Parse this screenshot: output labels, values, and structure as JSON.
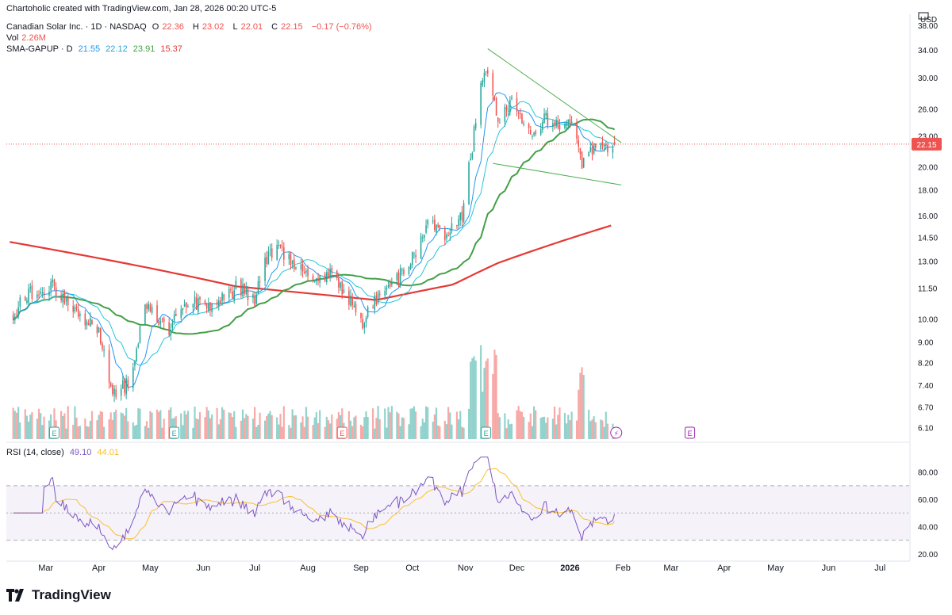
{
  "header": {
    "credit": "Chartoholic created with TradingView.com, Jan 28, 2026 00:20 UTC-5",
    "symbol": "Canadian Solar Inc. · 1D · NASDAQ",
    "o_label": "O",
    "o": "22.36",
    "h_label": "H",
    "h": "23.02",
    "l_label": "L",
    "l": "22.01",
    "c_label": "C",
    "c": "22.15",
    "change": "−0.17 (−0.76%)",
    "vol_label": "Vol",
    "vol": "2.26M",
    "sma_label": "SMA-GAPUP · D",
    "sma_values": [
      "21.55",
      "22.12",
      "23.91",
      "15.37"
    ],
    "rsi_label": "RSI (14, close)",
    "rsi_values": [
      "49.10",
      "44.01"
    ]
  },
  "brand": {
    "name": "TradingView"
  },
  "colors": {
    "up": "#26a69a",
    "down": "#ef5350",
    "sma_fast": "#2196f3",
    "sma_mid": "#26c6da",
    "sma_50": "#43a047",
    "sma_200": "#e53935",
    "rsi": "#7e57c2",
    "rsi_ma": "#fbc02d",
    "trendline": "#4caf50",
    "last_price_bg": "#ef5350"
  },
  "chart_data": [
    {
      "type": "candlestick",
      "title": "Canadian Solar Inc. · 1D · NASDAQ",
      "scale": "log",
      "y_ticks": [
        38.0,
        34.0,
        30.0,
        26.0,
        23.0,
        20.0,
        18.0,
        16.0,
        14.5,
        13.0,
        11.5,
        10.0,
        9.0,
        8.2,
        7.4,
        6.7,
        6.1
      ],
      "y_tick_labels": [
        "38.00",
        "34.00",
        "30.00",
        "26.00",
        "23.00",
        "20.00",
        "18.00",
        "16.00",
        "14.50",
        "13.00",
        "11.50",
        "10.00",
        "9.00",
        "8.20",
        "7.40",
        "6.70",
        "6.10"
      ],
      "y_unit": "USD",
      "ylim": [
        5.75,
        40.0
      ],
      "last_price": 22.15,
      "last_price_label": "22.15",
      "x_labels": [
        "Mar",
        "Apr",
        "May",
        "Jun",
        "Jul",
        "Aug",
        "Sep",
        "Oct",
        "Nov",
        "Dec",
        "2026",
        "Feb",
        "Mar",
        "Apr",
        "May",
        "Jun",
        "Jul"
      ],
      "x_label_dates": [
        "2025-03-01",
        "2025-04-01",
        "2025-05-01",
        "2025-06-01",
        "2025-07-01",
        "2025-08-01",
        "2025-09-01",
        "2025-10-01",
        "2025-11-01",
        "2025-12-01",
        "2026-01-01",
        "2026-02-01",
        "2026-03-01",
        "2026-04-01",
        "2026-05-01",
        "2026-06-01",
        "2026-07-01"
      ],
      "price_anchors": [
        [
          "2025-02-10",
          10.3
        ],
        [
          "2025-02-20",
          11.2
        ],
        [
          "2025-03-05",
          11.6
        ],
        [
          "2025-03-20",
          10.2
        ],
        [
          "2025-04-01",
          9.5
        ],
        [
          "2025-04-09",
          7.0
        ],
        [
          "2025-04-20",
          7.6
        ],
        [
          "2025-04-28",
          10.6
        ],
        [
          "2025-05-12",
          9.6
        ],
        [
          "2025-05-22",
          10.8
        ],
        [
          "2025-06-05",
          10.6
        ],
        [
          "2025-06-20",
          11.5
        ],
        [
          "2025-07-01",
          11.0
        ],
        [
          "2025-07-08",
          13.3
        ],
        [
          "2025-07-15",
          13.6
        ],
        [
          "2025-07-25",
          12.8
        ],
        [
          "2025-08-05",
          11.8
        ],
        [
          "2025-08-15",
          12.2
        ],
        [
          "2025-08-25",
          11.0
        ],
        [
          "2025-09-02",
          9.8
        ],
        [
          "2025-09-12",
          11.2
        ],
        [
          "2025-09-22",
          11.9
        ],
        [
          "2025-10-01",
          13.2
        ],
        [
          "2025-10-10",
          15.5
        ],
        [
          "2025-10-20",
          14.3
        ],
        [
          "2025-10-30",
          16.2
        ],
        [
          "2025-11-05",
          22.0
        ],
        [
          "2025-11-10",
          28.5
        ],
        [
          "2025-11-14",
          31.5
        ],
        [
          "2025-11-20",
          24.0
        ],
        [
          "2025-11-28",
          27.5
        ],
        [
          "2025-12-08",
          23.5
        ],
        [
          "2025-12-18",
          24.8
        ],
        [
          "2026-01-02",
          24.2
        ],
        [
          "2026-01-08",
          20.2
        ],
        [
          "2026-01-15",
          21.8
        ],
        [
          "2026-01-22",
          21.6
        ],
        [
          "2026-01-27",
          22.15
        ]
      ],
      "sma_lines": [
        {
          "name": "SMA-GAPUP 10",
          "value": 21.55
        },
        {
          "name": "SMA-GAPUP 20",
          "value": 22.12
        },
        {
          "name": "SMA-GAPUP 50",
          "value": 23.91
        },
        {
          "name": "SMA-GAPUP 200",
          "value": 15.37,
          "anchors": [
            [
              "2025-02-08",
              14.2
            ],
            [
              "2025-05-01",
              12.6
            ],
            [
              "2025-06-20",
              11.6
            ],
            [
              "2025-09-10",
              10.9
            ],
            [
              "2025-10-25",
              11.7
            ],
            [
              "2025-11-20",
              12.9
            ],
            [
              "2026-01-27",
              15.37
            ]
          ]
        }
      ],
      "trendlines": [
        {
          "from": [
            "2025-11-14",
            34.2
          ],
          "to": [
            "2026-01-31",
            22.3
          ]
        },
        {
          "from": [
            "2025-11-17",
            20.3
          ],
          "to": [
            "2026-01-31",
            18.4
          ]
        }
      ]
    },
    {
      "type": "bar",
      "title": "Vol",
      "last_value": "2.26M",
      "series": [
        {
          "name": "Vol",
          "values_note": "daily volume bars, colored by candle direction"
        }
      ]
    },
    {
      "type": "line",
      "title": "RSI (14, close)",
      "y_ticks": [
        80.0,
        60.0,
        40.0,
        20.0
      ],
      "y_tick_labels": [
        "80.00",
        "60.00",
        "40.00",
        "20.00"
      ],
      "ylim": [
        17,
        92
      ],
      "bands": [
        30,
        50,
        70
      ],
      "series": [
        {
          "name": "RSI",
          "last": 49.1
        },
        {
          "name": "RSI MA",
          "last": 44.01
        }
      ]
    }
  ],
  "events": {
    "earnings_label": "E",
    "dividend_label": "⚡"
  }
}
